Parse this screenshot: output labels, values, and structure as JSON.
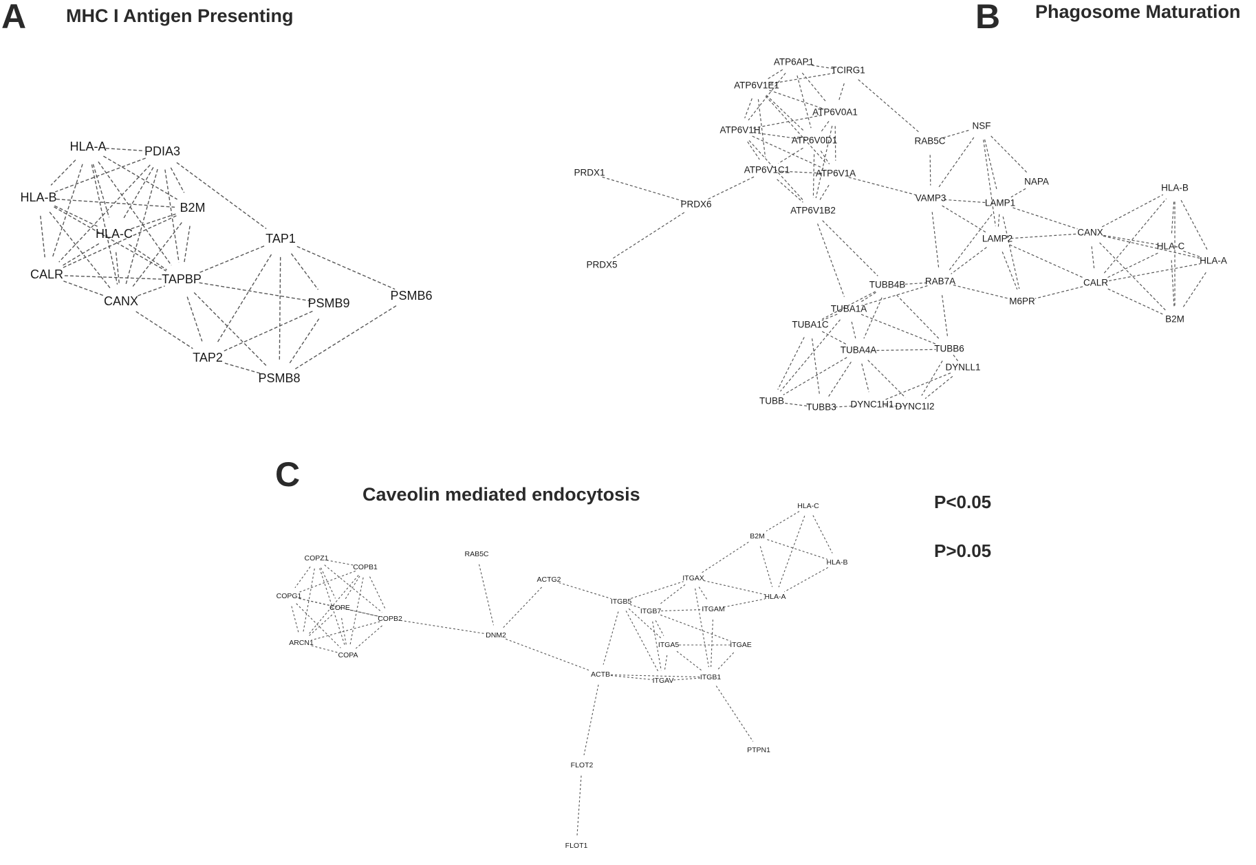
{
  "panels": {
    "a": {
      "letter": "A",
      "title": "MHC I Antigen Presenting",
      "nodes": [
        "HLA-A",
        "PDIA3",
        "HLA-B",
        "B2M",
        "HLA-C",
        "TAP1",
        "CALR",
        "TAPBP",
        "CANX",
        "PSMB9",
        "PSMB6",
        "TAP2",
        "PSMB8"
      ],
      "edges": [
        [
          "HLA-A",
          "PDIA3"
        ],
        [
          "HLA-A",
          "HLA-B"
        ],
        [
          "HLA-A",
          "HLA-C"
        ],
        [
          "HLA-A",
          "B2M"
        ],
        [
          "HLA-A",
          "CALR"
        ],
        [
          "HLA-A",
          "TAPBP"
        ],
        [
          "HLA-A",
          "CANX"
        ],
        [
          "PDIA3",
          "HLA-B"
        ],
        [
          "PDIA3",
          "HLA-C"
        ],
        [
          "PDIA3",
          "B2M"
        ],
        [
          "PDIA3",
          "TAPBP"
        ],
        [
          "PDIA3",
          "CALR"
        ],
        [
          "PDIA3",
          "TAP1"
        ],
        [
          "PDIA3",
          "CANX"
        ],
        [
          "HLA-B",
          "B2M"
        ],
        [
          "HLA-B",
          "HLA-C"
        ],
        [
          "HLA-B",
          "CALR"
        ],
        [
          "HLA-B",
          "CANX"
        ],
        [
          "HLA-B",
          "TAPBP"
        ],
        [
          "HLA-C",
          "B2M"
        ],
        [
          "HLA-C",
          "CALR"
        ],
        [
          "HLA-C",
          "CANX"
        ],
        [
          "HLA-C",
          "TAPBP"
        ],
        [
          "B2M",
          "TAPBP"
        ],
        [
          "B2M",
          "CALR"
        ],
        [
          "B2M",
          "CANX"
        ],
        [
          "CALR",
          "CANX"
        ],
        [
          "CALR",
          "TAPBP"
        ],
        [
          "CANX",
          "TAPBP"
        ],
        [
          "TAP1",
          "TAPBP"
        ],
        [
          "TAP1",
          "PSMB9"
        ],
        [
          "TAP1",
          "PSMB6"
        ],
        [
          "TAP1",
          "TAP2"
        ],
        [
          "TAP1",
          "PSMB8"
        ],
        [
          "TAPBP",
          "PSMB9"
        ],
        [
          "TAPBP",
          "TAP2"
        ],
        [
          "TAPBP",
          "PSMB8"
        ],
        [
          "CANX",
          "TAP2"
        ],
        [
          "PSMB9",
          "PSMB8"
        ],
        [
          "PSMB9",
          "TAP2"
        ],
        [
          "PSMB6",
          "PSMB8"
        ],
        [
          "TAP2",
          "PSMB8"
        ]
      ]
    },
    "b": {
      "letter": "B",
      "title": "Phagosome Maturation",
      "nodes": [
        "ATP6AP1",
        "TCIRG1",
        "ATP6V1E1",
        "ATP6V0A1",
        "ATP6V1H",
        "ATP6V0D1",
        "NSF",
        "RAB5C",
        "PRDX1",
        "ATP6V1C1",
        "ATP6V1A",
        "NAPA",
        "PRDX6",
        "VAMP3",
        "LAMP1",
        "ATP6V1B2",
        "HLA-B",
        "CANX",
        "LAMP2",
        "HLA-C",
        "HLA-A",
        "PRDX5",
        "TUBB4B",
        "RAB7A",
        "CALR",
        "M6PR",
        "TUBA1A",
        "B2M",
        "TUBA1C",
        "TUBA4A",
        "TUBB6",
        "DYNLL1",
        "TUBB",
        "TUBB3",
        "DYNC1H1",
        "DYNC1I2"
      ],
      "edges": [
        [
          "PRDX1",
          "PRDX6"
        ],
        [
          "PRDX5",
          "PRDX6"
        ],
        [
          "PRDX6",
          "ATP6V1C1"
        ],
        [
          "ATP6AP1",
          "TCIRG1"
        ],
        [
          "ATP6AP1",
          "ATP6V1E1"
        ],
        [
          "ATP6AP1",
          "ATP6V0A1"
        ],
        [
          "ATP6AP1",
          "ATP6V1H"
        ],
        [
          "ATP6AP1",
          "ATP6V0D1"
        ],
        [
          "TCIRG1",
          "ATP6V0A1"
        ],
        [
          "TCIRG1",
          "RAB5C"
        ],
        [
          "TCIRG1",
          "ATP6V1E1"
        ],
        [
          "ATP6V1E1",
          "ATP6V0A1"
        ],
        [
          "ATP6V1E1",
          "ATP6V1H"
        ],
        [
          "ATP6V1E1",
          "ATP6V0D1"
        ],
        [
          "ATP6V1E1",
          "ATP6V1C1"
        ],
        [
          "ATP6V1E1",
          "ATP6V1A"
        ],
        [
          "ATP6V0A1",
          "ATP6V0D1"
        ],
        [
          "ATP6V0A1",
          "ATP6V1H"
        ],
        [
          "ATP6V0A1",
          "ATP6V1A"
        ],
        [
          "ATP6V0A1",
          "ATP6V1B2"
        ],
        [
          "ATP6V1H",
          "ATP6V0D1"
        ],
        [
          "ATP6V1H",
          "ATP6V1C1"
        ],
        [
          "ATP6V1H",
          "ATP6V1A"
        ],
        [
          "ATP6V1H",
          "ATP6V1B2"
        ],
        [
          "ATP6V0D1",
          "ATP6V1C1"
        ],
        [
          "ATP6V0D1",
          "ATP6V1A"
        ],
        [
          "ATP6V0D1",
          "ATP6V1B2"
        ],
        [
          "ATP6V1C1",
          "ATP6V1A"
        ],
        [
          "ATP6V1C1",
          "ATP6V1B2"
        ],
        [
          "ATP6V1A",
          "ATP6V1B2"
        ],
        [
          "ATP6V1A",
          "VAMP3"
        ],
        [
          "ATP6V1B2",
          "TUBB4B"
        ],
        [
          "ATP6V1B2",
          "TUBA1A"
        ],
        [
          "NSF",
          "VAMP3"
        ],
        [
          "NSF",
          "NAPA"
        ],
        [
          "NSF",
          "LAMP1"
        ],
        [
          "NSF",
          "RAB5C"
        ],
        [
          "NSF",
          "LAMP2"
        ],
        [
          "RAB5C",
          "VAMP3"
        ],
        [
          "VAMP3",
          "LAMP1"
        ],
        [
          "VAMP3",
          "LAMP2"
        ],
        [
          "VAMP3",
          "RAB7A"
        ],
        [
          "LAMP1",
          "LAMP2"
        ],
        [
          "LAMP1",
          "CANX"
        ],
        [
          "LAMP1",
          "RAB7A"
        ],
        [
          "LAMP1",
          "M6PR"
        ],
        [
          "LAMP2",
          "CANX"
        ],
        [
          "LAMP2",
          "RAB7A"
        ],
        [
          "LAMP2",
          "CALR"
        ],
        [
          "LAMP2",
          "M6PR"
        ],
        [
          "NAPA",
          "LAMP1"
        ],
        [
          "CANX",
          "HLA-B"
        ],
        [
          "CANX",
          "HLA-C"
        ],
        [
          "CANX",
          "HLA-A"
        ],
        [
          "CANX",
          "CALR"
        ],
        [
          "CANX",
          "B2M"
        ],
        [
          "CALR",
          "HLA-B"
        ],
        [
          "CALR",
          "HLA-C"
        ],
        [
          "CALR",
          "HLA-A"
        ],
        [
          "CALR",
          "B2M"
        ],
        [
          "CALR",
          "M6PR"
        ],
        [
          "HLA-B",
          "HLA-C"
        ],
        [
          "HLA-B",
          "HLA-A"
        ],
        [
          "HLA-B",
          "B2M"
        ],
        [
          "HLA-C",
          "HLA-A"
        ],
        [
          "HLA-C",
          "B2M"
        ],
        [
          "HLA-A",
          "B2M"
        ],
        [
          "RAB7A",
          "M6PR"
        ],
        [
          "RAB7A",
          "TUBB4B"
        ],
        [
          "RAB7A",
          "TUBB6"
        ],
        [
          "RAB7A",
          "TUBA1A"
        ],
        [
          "TUBB4B",
          "TUBA1A"
        ],
        [
          "TUBB4B",
          "TUBA4A"
        ],
        [
          "TUBB4B",
          "TUBB6"
        ],
        [
          "TUBB4B",
          "TUBA1C"
        ],
        [
          "TUBA1A",
          "TUBA1C"
        ],
        [
          "TUBA1A",
          "TUBA4A"
        ],
        [
          "TUBA1A",
          "TUBB6"
        ],
        [
          "TUBA1A",
          "TUBB"
        ],
        [
          "TUBA1C",
          "TUBA4A"
        ],
        [
          "TUBA1C",
          "TUBB"
        ],
        [
          "TUBA1C",
          "TUBB3"
        ],
        [
          "TUBA4A",
          "TUBB6"
        ],
        [
          "TUBA4A",
          "TUBB"
        ],
        [
          "TUBA4A",
          "TUBB3"
        ],
        [
          "TUBA4A",
          "DYNC1H1"
        ],
        [
          "TUBA4A",
          "DYNC1I2"
        ],
        [
          "TUBB6",
          "DYNLL1"
        ],
        [
          "TUBB6",
          "DYNC1I2"
        ],
        [
          "DYNLL1",
          "DYNC1H1"
        ],
        [
          "DYNLL1",
          "DYNC1I2"
        ],
        [
          "DYNC1H1",
          "DYNC1I2"
        ],
        [
          "TUBB",
          "TUBB3"
        ],
        [
          "TUBB3",
          "DYNC1H1"
        ]
      ]
    },
    "c": {
      "letter": "C",
      "title": "Caveolin mediated endocytosis",
      "nodes": [
        "HLA-C",
        "B2M",
        "HLA-B",
        "COPZ1",
        "RAB5C",
        "COPB1",
        "ACTG2",
        "ITGAX",
        "HLA-A",
        "COPG1",
        "ITGB5",
        "ITGB7",
        "ITGAM",
        "COPE",
        "COPB2",
        "DNM2",
        "ITGA5",
        "ITGAE",
        "ARCN1",
        "COPA",
        "ACTB",
        "ITGAV",
        "ITGB1",
        "PTPN1",
        "FLOT2",
        "FLOT1"
      ],
      "edges": [
        [
          "COPZ1",
          "COPB1"
        ],
        [
          "COPZ1",
          "COPG1"
        ],
        [
          "COPZ1",
          "COPE"
        ],
        [
          "COPZ1",
          "COPB2"
        ],
        [
          "COPZ1",
          "ARCN1"
        ],
        [
          "COPZ1",
          "COPA"
        ],
        [
          "COPB1",
          "COPG1"
        ],
        [
          "COPB1",
          "COPE"
        ],
        [
          "COPB1",
          "COPB2"
        ],
        [
          "COPB1",
          "ARCN1"
        ],
        [
          "COPB1",
          "COPA"
        ],
        [
          "COPG1",
          "COPE"
        ],
        [
          "COPG1",
          "COPB2"
        ],
        [
          "COPG1",
          "ARCN1"
        ],
        [
          "COPG1",
          "COPA"
        ],
        [
          "COPE",
          "COPB2"
        ],
        [
          "COPE",
          "ARCN1"
        ],
        [
          "COPE",
          "COPA"
        ],
        [
          "COPB2",
          "ARCN1"
        ],
        [
          "COPB2",
          "COPA"
        ],
        [
          "ARCN1",
          "COPA"
        ],
        [
          "COPB2",
          "DNM2"
        ],
        [
          "RAB5C",
          "DNM2"
        ],
        [
          "ACTG2",
          "DNM2"
        ],
        [
          "ACTG2",
          "ITGB5"
        ],
        [
          "DNM2",
          "ACTB"
        ],
        [
          "ITGB5",
          "ITGAX"
        ],
        [
          "ITGB5",
          "ITGB7"
        ],
        [
          "ITGB5",
          "ITGA5"
        ],
        [
          "ITGB5",
          "ITGAV"
        ],
        [
          "ITGB5",
          "ACTB"
        ],
        [
          "ITGAX",
          "ITGB7"
        ],
        [
          "ITGAX",
          "ITGAM"
        ],
        [
          "ITGAX",
          "HLA-A"
        ],
        [
          "ITGAX",
          "B2M"
        ],
        [
          "ITGAX",
          "ITGB1"
        ],
        [
          "ITGB7",
          "ITGAM"
        ],
        [
          "ITGB7",
          "ITGA5"
        ],
        [
          "ITGB7",
          "ITGAE"
        ],
        [
          "ITGB7",
          "ITGAV"
        ],
        [
          "ITGAM",
          "HLA-A"
        ],
        [
          "ITGAM",
          "ITGB1"
        ],
        [
          "ITGA5",
          "ITGAE"
        ],
        [
          "ITGA5",
          "ITGB1"
        ],
        [
          "ITGA5",
          "ITGAV"
        ],
        [
          "ITGAE",
          "ITGB1"
        ],
        [
          "ITGAV",
          "ITGB1"
        ],
        [
          "ACTB",
          "ITGAV"
        ],
        [
          "ACTB",
          "ITGB1"
        ],
        [
          "ACTB",
          "FLOT2"
        ],
        [
          "ITGB1",
          "PTPN1"
        ],
        [
          "FLOT2",
          "FLOT1"
        ],
        [
          "HLA-C",
          "B2M"
        ],
        [
          "HLA-C",
          "HLA-B"
        ],
        [
          "HLA-C",
          "HLA-A"
        ],
        [
          "B2M",
          "HLA-B"
        ],
        [
          "B2M",
          "HLA-A"
        ],
        [
          "HLA-B",
          "HLA-A"
        ]
      ]
    }
  },
  "legend": {
    "significant": "P<0.05",
    "not_significant": "P>0.05"
  }
}
